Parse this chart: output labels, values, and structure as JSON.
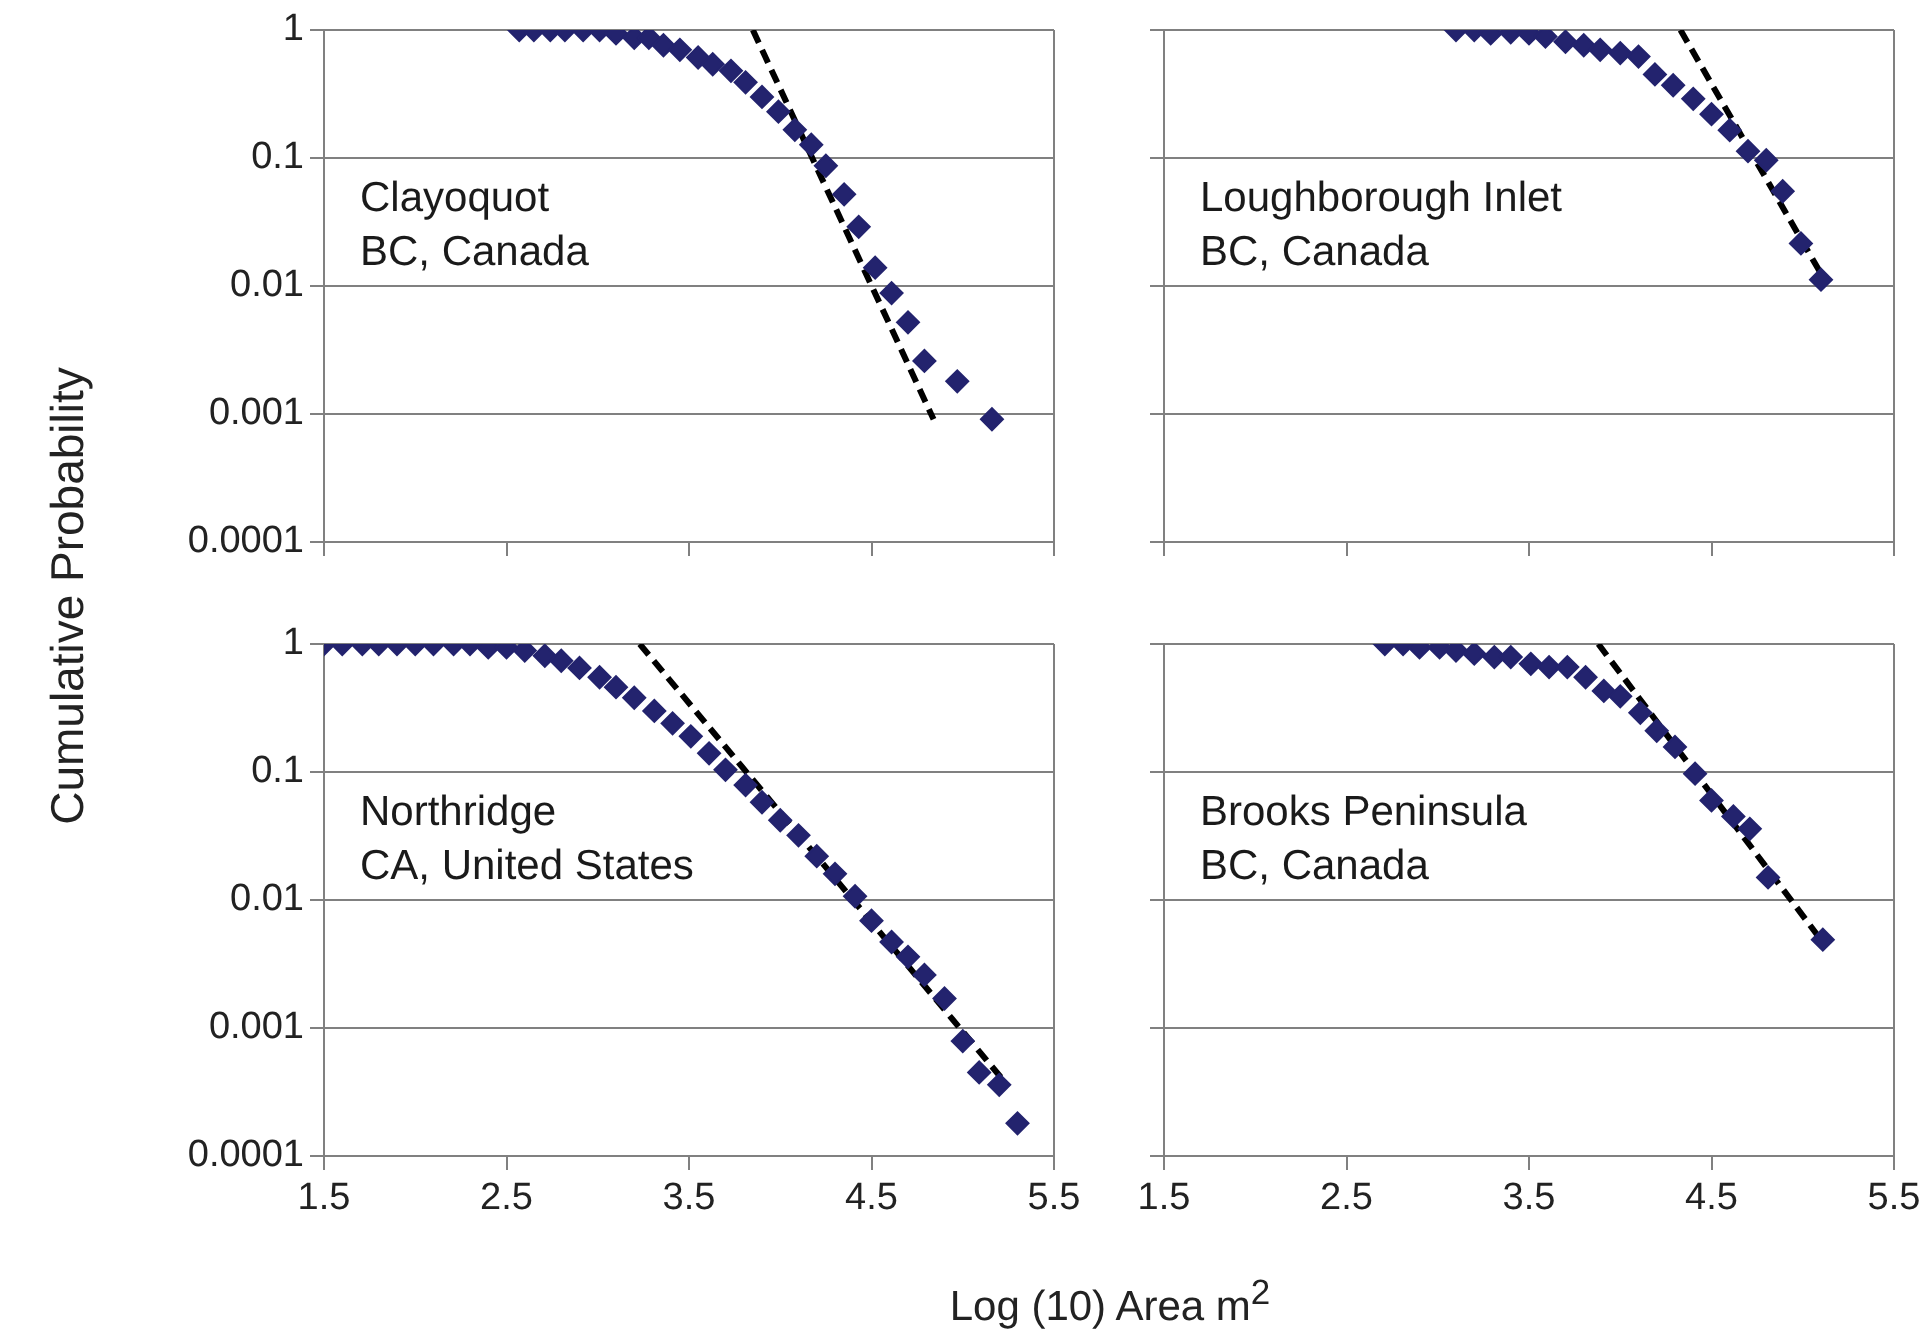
{
  "chart_data": [
    {
      "type": "scatter",
      "ylabel": "Cumulative Probability",
      "annotations": [
        "Clayoquot",
        "BC, Canada"
      ],
      "log": "y",
      "grid": "y",
      "tick_labels": "y",
      "marker": "diamond",
      "xlim": [
        1.5,
        5.5
      ],
      "xticks": [
        1.5,
        2.5,
        3.5,
        4.5,
        5.5
      ],
      "ylim": [
        0.0001,
        1
      ],
      "yticks": [
        0.0001,
        0.001,
        0.01,
        0.1,
        1
      ],
      "series": [
        {
          "type": "scatter",
          "color": "#23236e",
          "x": [
            2.57,
            2.65,
            2.74,
            2.82,
            2.92,
            3.01,
            3.1,
            3.2,
            3.28,
            3.36,
            3.45,
            3.55,
            3.63,
            3.73,
            3.81,
            3.9,
            3.99,
            4.08,
            4.17,
            4.25,
            4.35,
            4.43,
            4.52,
            4.61,
            4.7,
            4.79,
            4.97,
            5.16
          ],
          "values": [
            1,
            1,
            1,
            1,
            1,
            1,
            0.94,
            0.87,
            0.87,
            0.76,
            0.7,
            0.61,
            0.54,
            0.48,
            0.39,
            0.3,
            0.23,
            0.166,
            0.127,
            0.087,
            0.052,
            0.029,
            0.0139,
            0.0088,
            0.0052,
            0.0026,
            0.0018,
            0.00091
          ]
        },
        {
          "type": "line",
          "color": "#000000",
          "line_style": "dashed",
          "marker": "none",
          "x": [
            3.85,
            4.84
          ],
          "values": [
            1,
            0.00091
          ]
        }
      ]
    },
    {
      "type": "scatter",
      "annotations": [
        "Loughborough Inlet",
        "BC, Canada"
      ],
      "log": "y",
      "grid": "y",
      "tick_labels": false,
      "marker": "diamond",
      "xlim": [
        1.5,
        5.5
      ],
      "xticks": [
        1.5,
        2.5,
        3.5,
        4.5,
        5.5
      ],
      "ylim": [
        0.0001,
        1
      ],
      "yticks": [
        0.0001,
        0.001,
        0.01,
        0.1,
        1
      ],
      "series": [
        {
          "type": "scatter",
          "color": "#23236e",
          "x": [
            3.1,
            3.2,
            3.29,
            3.4,
            3.5,
            3.59,
            3.7,
            3.8,
            3.89,
            4.0,
            4.1,
            4.19,
            4.29,
            4.4,
            4.5,
            4.6,
            4.7,
            4.8,
            4.89,
            4.99,
            5.1
          ],
          "values": [
            1,
            1,
            0.94,
            0.96,
            0.94,
            0.89,
            0.81,
            0.76,
            0.7,
            0.66,
            0.62,
            0.45,
            0.37,
            0.29,
            0.22,
            0.165,
            0.113,
            0.096,
            0.055,
            0.0215,
            0.0112
          ]
        },
        {
          "type": "line",
          "color": "#000000",
          "line_style": "dashed",
          "marker": "none",
          "x": [
            4.33,
            5.13
          ],
          "values": [
            1,
            0.0105
          ]
        }
      ]
    },
    {
      "type": "scatter",
      "xlabel": "Log (10) Area m$^{2}$",
      "annotations": [
        "Northridge",
        "CA, United States"
      ],
      "log": "y",
      "grid": "y",
      "marker": "diamond",
      "xlim": [
        1.5,
        5.5
      ],
      "xticks": [
        1.5,
        2.5,
        3.5,
        4.5,
        5.5
      ],
      "ylim": [
        0.0001,
        1
      ],
      "yticks": [
        0.0001,
        0.001,
        0.01,
        0.1,
        1
      ],
      "series": [
        {
          "type": "scatter",
          "color": "#23236e",
          "x": [
            1.5,
            1.6,
            1.71,
            1.8,
            1.9,
            2.0,
            2.1,
            2.21,
            2.3,
            2.4,
            2.5,
            2.6,
            2.71,
            2.8,
            2.9,
            3.01,
            3.1,
            3.2,
            3.31,
            3.41,
            3.51,
            3.61,
            3.7,
            3.81,
            3.9,
            4.0,
            4.1,
            4.2,
            4.3,
            4.41,
            4.5,
            4.61,
            4.7,
            4.79,
            4.9,
            5.0,
            5.09,
            5.2,
            5.3
          ],
          "values": [
            1,
            1,
            1,
            1,
            1,
            1,
            1,
            1,
            1,
            0.94,
            0.94,
            0.89,
            0.81,
            0.74,
            0.65,
            0.55,
            0.46,
            0.38,
            0.3,
            0.24,
            0.19,
            0.14,
            0.104,
            0.079,
            0.058,
            0.042,
            0.032,
            0.022,
            0.016,
            0.0107,
            0.0069,
            0.0047,
            0.0036,
            0.0026,
            0.0017,
            0.00079,
            0.00045,
            0.00036,
            0.00018
          ]
        },
        {
          "type": "line",
          "color": "#000000",
          "line_style": "dashed",
          "marker": "none",
          "x": [
            3.23,
            5.21
          ],
          "values": [
            1,
            0.00041
          ]
        }
      ]
    },
    {
      "type": "scatter",
      "annotations": [
        "Brooks Peninsula",
        "BC, Canada"
      ],
      "log": "y",
      "grid": "y",
      "tick_labels": "x",
      "marker": "diamond",
      "xlim": [
        1.5,
        5.5
      ],
      "xticks": [
        1.5,
        2.5,
        3.5,
        4.5,
        5.5
      ],
      "ylim": [
        0.0001,
        1
      ],
      "yticks": [
        0.0001,
        0.001,
        0.01,
        0.1,
        1
      ],
      "series": [
        {
          "type": "scatter",
          "color": "#23236e",
          "x": [
            2.71,
            2.81,
            2.9,
            3.01,
            3.1,
            3.2,
            3.31,
            3.4,
            3.51,
            3.61,
            3.71,
            3.81,
            3.91,
            4.0,
            4.11,
            4.2,
            4.3,
            4.41,
            4.5,
            4.62,
            4.71,
            4.81,
            5.11
          ],
          "values": [
            1,
            1,
            0.94,
            0.94,
            0.89,
            0.84,
            0.79,
            0.79,
            0.7,
            0.66,
            0.66,
            0.55,
            0.43,
            0.39,
            0.29,
            0.21,
            0.157,
            0.097,
            0.06,
            0.045,
            0.036,
            0.015,
            0.0049
          ]
        },
        {
          "type": "line",
          "color": "#000000",
          "line_style": "dashed",
          "marker": "none",
          "x": [
            3.88,
            5.09
          ],
          "values": [
            1,
            0.0051
          ]
        }
      ]
    }
  ]
}
